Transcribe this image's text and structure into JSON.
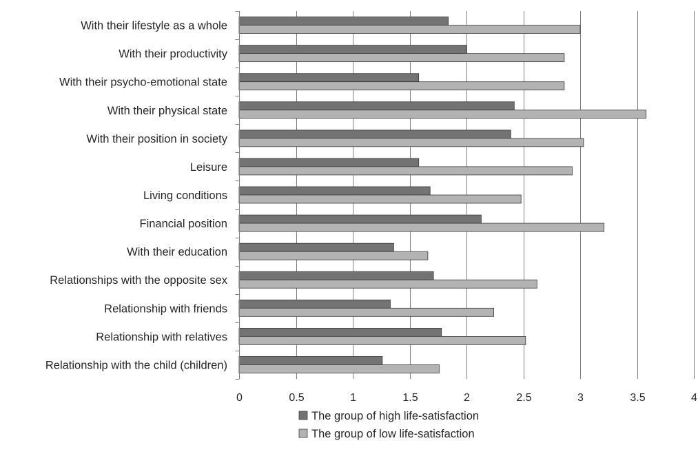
{
  "chart_data": {
    "type": "bar",
    "orientation": "horizontal",
    "categories": [
      "With their lifestyle as a whole",
      "With their productivity",
      "With their psycho-emotional state",
      "With their physical state",
      "With their position in society",
      "Leisure",
      "Living conditions",
      "Financial position",
      "With their education",
      "Relationships with the opposite sex",
      "Relationship with friends",
      "Relationship with relatives",
      "Relationship with the child (children)"
    ],
    "series": [
      {
        "name": "The group of high life-satisfaction",
        "color": "#737373",
        "values": [
          1.84,
          2.0,
          1.58,
          2.42,
          2.39,
          1.58,
          1.68,
          2.13,
          1.36,
          1.71,
          1.33,
          1.78,
          1.26
        ]
      },
      {
        "name": "The group of low life-satisfaction",
        "color": "#b3b3b3",
        "values": [
          3.0,
          2.86,
          2.86,
          3.58,
          3.03,
          2.93,
          2.48,
          3.21,
          1.66,
          2.62,
          2.24,
          2.52,
          1.76
        ]
      }
    ],
    "xlim": [
      0,
      4
    ],
    "xticks": [
      "0",
      "0.5",
      "1",
      "1.5",
      "2",
      "2.5",
      "3",
      "3.5",
      "4"
    ],
    "grid": "vertical",
    "legend_position": "bottom"
  }
}
